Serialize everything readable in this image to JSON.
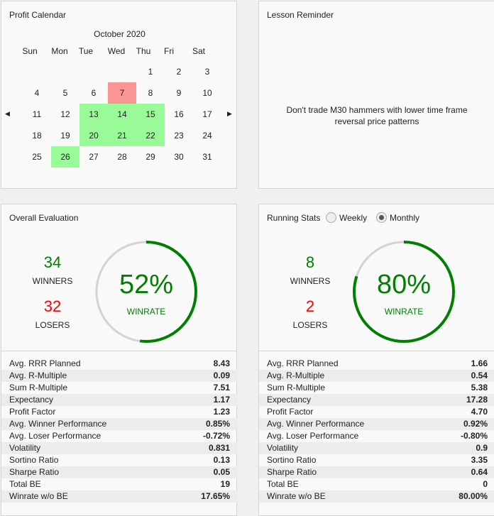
{
  "calendar": {
    "title": "Profit Calendar",
    "month": "October 2020",
    "days_of_week": [
      "Sun",
      "Mon",
      "Tue",
      "Wed",
      "Thu",
      "Fri",
      "Sat"
    ],
    "first_weekday": 4,
    "days_in_month": 31,
    "win_days": [
      13,
      14,
      15,
      20,
      21,
      22,
      26
    ],
    "loss_days": [
      7
    ],
    "colors": {
      "win": "#98fb98",
      "loss": "#f99595"
    }
  },
  "lesson": {
    "title": "Lesson Reminder",
    "line1": "Don't trade M30 hammers with lower time frame",
    "line2": "reversal price patterns"
  },
  "overall": {
    "title": "Overall Evaluation",
    "winners": "34",
    "winners_label": "WINNERS",
    "losers": "32",
    "losers_label": "LOSERS",
    "winrate": "52%",
    "winrate_value": 0.52,
    "winrate_label": "WINRATE",
    "stats": [
      [
        "Avg. RRR Planned",
        "8.43"
      ],
      [
        "Avg. R-Multiple",
        "0.09"
      ],
      [
        "Sum R-Multiple",
        "7.51"
      ],
      [
        "Expectancy",
        "1.17"
      ],
      [
        "Profit Factor",
        "1.23"
      ],
      [
        "Avg. Winner Performance",
        "0.85%"
      ],
      [
        "Avg. Loser Performance",
        "-0.72%"
      ],
      [
        "Volatility",
        "0.831"
      ],
      [
        "Sortino Ratio",
        "0.13"
      ],
      [
        "Sharpe Ratio",
        "0.05"
      ],
      [
        "Total BE",
        "19"
      ],
      [
        "Winrate w/o BE",
        "17.65%"
      ]
    ]
  },
  "running": {
    "title": "Running Stats",
    "weekly": "Weekly",
    "monthly": "Monthly",
    "selected": "Monthly",
    "winners": "8",
    "winners_label": "WINNERS",
    "losers": "2",
    "losers_label": "LOSERS",
    "winrate": "80%",
    "winrate_value": 0.8,
    "winrate_label": "WINRATE",
    "stats": [
      [
        "Avg. RRR Planned",
        "1.66"
      ],
      [
        "Avg. R-Multiple",
        "0.54"
      ],
      [
        "Sum R-Multiple",
        "5.38"
      ],
      [
        "Expectancy",
        "17.28"
      ],
      [
        "Profit Factor",
        "4.70"
      ],
      [
        "Avg. Winner Performance",
        "0.92%"
      ],
      [
        "Avg. Loser Performance",
        "-0.80%"
      ],
      [
        "Volatility",
        "0.9"
      ],
      [
        "Sortino Ratio",
        "3.35"
      ],
      [
        "Sharpe Ratio",
        "0.64"
      ],
      [
        "Total BE",
        "0"
      ],
      [
        "Winrate w/o BE",
        "80.00%"
      ]
    ]
  }
}
